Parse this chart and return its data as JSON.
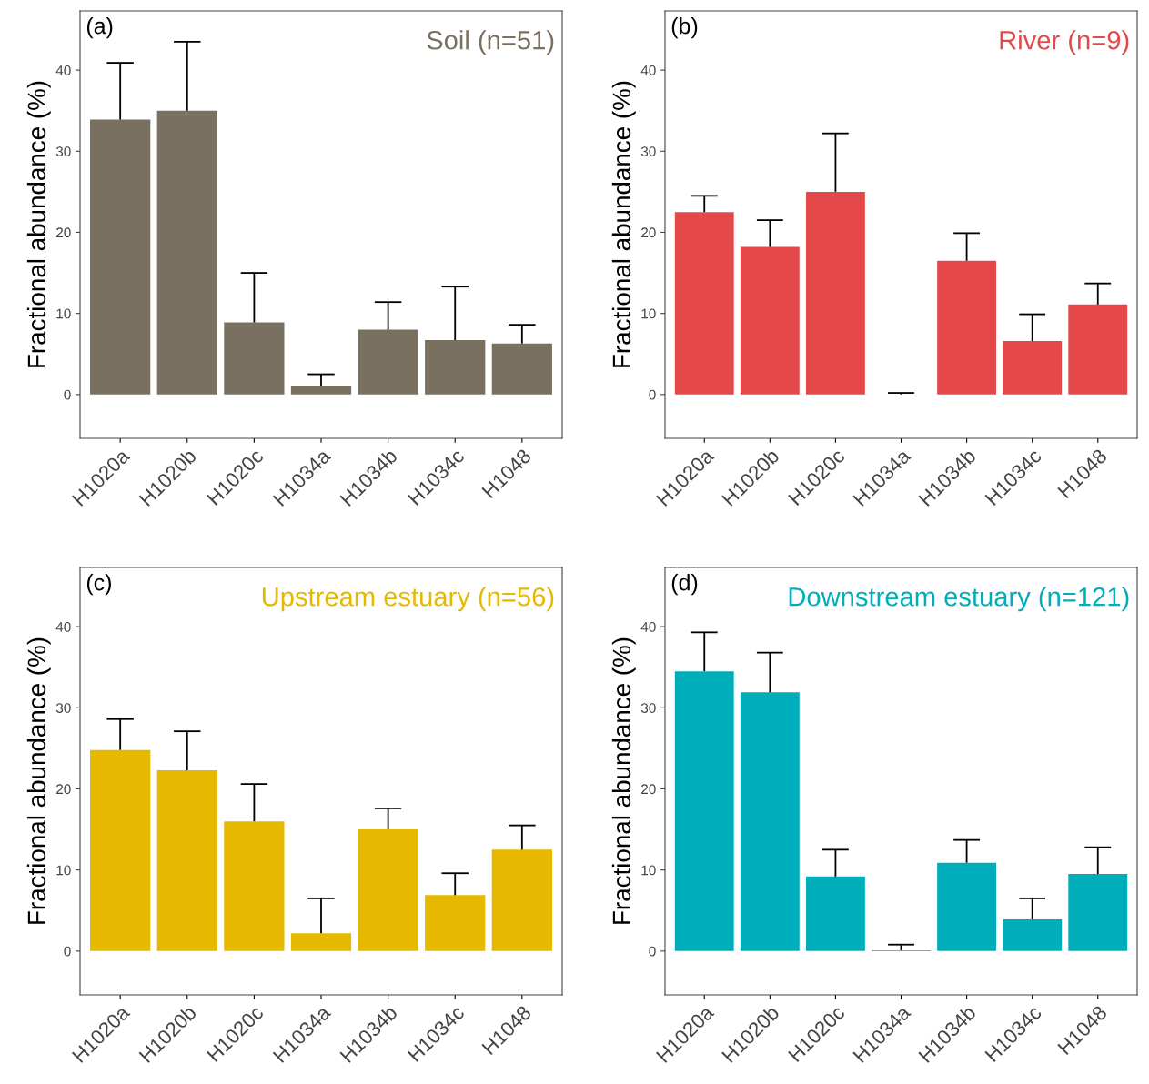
{
  "chart_data": [
    {
      "type": "bar",
      "title": "Soil (n=51)",
      "ylabel": "Fractional abundance (%)",
      "annotations": [
        "(a)"
      ],
      "categories": [
        "H1020a",
        "H1020b",
        "H1020c",
        "H1034a",
        "H1034b",
        "H1034c",
        "H1048"
      ],
      "series": [
        {
          "color": "#7a7060",
          "values": [
            33.9,
            35.0,
            8.9,
            1.1,
            8.0,
            6.7,
            6.3
          ],
          "errors": [
            [
              33.9,
              40.9
            ],
            [
              35.0,
              43.5
            ],
            [
              8.9,
              15.0
            ],
            [
              1.1,
              2.5
            ],
            [
              8.0,
              11.4
            ],
            [
              6.7,
              13.3
            ],
            [
              6.3,
              8.6
            ]
          ]
        }
      ],
      "ylim": [
        -5.4,
        47.3
      ],
      "yticks": [
        0,
        10,
        20,
        30,
        40
      ],
      "grid": false,
      "legend": false
    },
    {
      "type": "bar",
      "title": "River (n=9)",
      "ylabel": "Fractional abundance (%)",
      "annotations": [
        "(b)"
      ],
      "categories": [
        "H1020a",
        "H1020b",
        "H1020c",
        "H1034a",
        "H1034b",
        "H1034c",
        "H1048"
      ],
      "series": [
        {
          "color": "#e54848",
          "values": [
            22.5,
            18.2,
            25.0,
            0.0,
            16.5,
            6.6,
            11.1
          ],
          "errors": [
            [
              22.5,
              24.5
            ],
            [
              18.2,
              21.5
            ],
            [
              25.0,
              32.2
            ],
            [
              0.0,
              0.2
            ],
            [
              16.5,
              19.9
            ],
            [
              6.6,
              9.9
            ],
            [
              11.1,
              13.7
            ]
          ]
        }
      ],
      "ylim": [
        -5.4,
        47.3
      ],
      "yticks": [
        0,
        10,
        20,
        30,
        40
      ],
      "grid": false,
      "legend": false
    },
    {
      "type": "bar",
      "title": "Upstream estuary (n=56)",
      "ylabel": "Fractional abundance (%)",
      "annotations": [
        "(c)"
      ],
      "categories": [
        "H1020a",
        "H1020b",
        "H1020c",
        "H1034a",
        "H1034b",
        "H1034c",
        "H1048"
      ],
      "series": [
        {
          "color": "#e6b800",
          "values": [
            24.8,
            22.3,
            16.0,
            2.2,
            15.0,
            6.9,
            12.5
          ],
          "errors": [
            [
              24.8,
              28.6
            ],
            [
              22.3,
              27.1
            ],
            [
              16.0,
              20.6
            ],
            [
              2.2,
              6.5
            ],
            [
              15.0,
              17.6
            ],
            [
              6.9,
              9.6
            ],
            [
              12.5,
              15.5
            ]
          ]
        }
      ],
      "ylim": [
        -5.4,
        47.3
      ],
      "yticks": [
        0,
        10,
        20,
        30,
        40
      ],
      "grid": false,
      "legend": false
    },
    {
      "type": "bar",
      "title": "Downstream estuary (n=121)",
      "ylabel": "Fractional abundance (%)",
      "annotations": [
        "(d)"
      ],
      "categories": [
        "H1020a",
        "H1020b",
        "H1020c",
        "H1034a",
        "H1034b",
        "H1034c",
        "H1048"
      ],
      "series": [
        {
          "color": "#00adbb",
          "values": [
            34.5,
            31.9,
            9.2,
            0.1,
            10.9,
            3.9,
            9.5
          ],
          "errors": [
            [
              34.5,
              39.3
            ],
            [
              31.9,
              36.8
            ],
            [
              9.2,
              12.5
            ],
            [
              0.1,
              0.8
            ],
            [
              10.9,
              13.7
            ],
            [
              3.9,
              6.5
            ],
            [
              9.5,
              12.8
            ]
          ]
        }
      ],
      "ylim": [
        -5.4,
        47.3
      ],
      "yticks": [
        0,
        10,
        20,
        30,
        40
      ],
      "grid": false,
      "legend": false
    }
  ]
}
